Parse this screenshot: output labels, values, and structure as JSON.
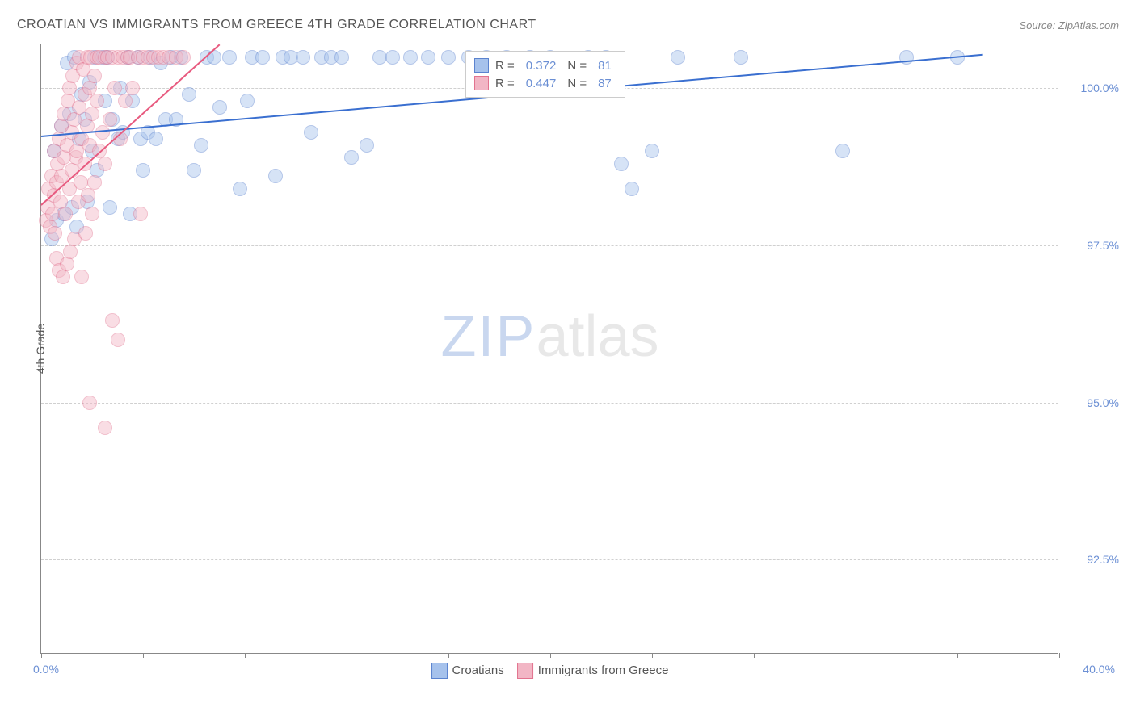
{
  "title": "CROATIAN VS IMMIGRANTS FROM GREECE 4TH GRADE CORRELATION CHART",
  "source": "Source: ZipAtlas.com",
  "watermark_a": "ZIP",
  "watermark_b": "atlas",
  "chart": {
    "type": "scatter",
    "xlim": [
      0,
      40
    ],
    "ylim": [
      91,
      100.7
    ],
    "x_tick_positions": [
      0,
      4,
      8,
      12,
      16,
      20,
      24,
      28,
      32,
      36,
      40
    ],
    "x_label_min": "0.0%",
    "x_label_max": "40.0%",
    "y_gridlines": [
      92.5,
      95.0,
      97.5,
      100.0
    ],
    "y_tick_labels": [
      "92.5%",
      "95.0%",
      "97.5%",
      "100.0%"
    ],
    "y_axis_title": "4th Grade",
    "background_color": "#ffffff",
    "grid_color": "#d0d0d0",
    "axis_color": "#888888",
    "point_radius": 9,
    "point_opacity": 0.45,
    "series": [
      {
        "name": "Croatians",
        "fill": "#a6c2ec",
        "stroke": "#5b83cf",
        "line_color": "#3a6fd0",
        "R": "0.372",
        "N": "81",
        "trend": {
          "x1": 0,
          "y1": 99.25,
          "x2": 37,
          "y2": 100.55
        },
        "points": [
          [
            0.4,
            97.6
          ],
          [
            0.5,
            99.0
          ],
          [
            0.6,
            97.9
          ],
          [
            0.8,
            99.4
          ],
          [
            0.9,
            98.0
          ],
          [
            1.0,
            100.4
          ],
          [
            1.1,
            99.6
          ],
          [
            1.2,
            98.1
          ],
          [
            1.3,
            100.5
          ],
          [
            1.4,
            97.8
          ],
          [
            1.5,
            99.2
          ],
          [
            1.6,
            99.9
          ],
          [
            1.7,
            99.5
          ],
          [
            1.8,
            98.2
          ],
          [
            1.9,
            100.1
          ],
          [
            2.0,
            99.0
          ],
          [
            2.1,
            100.5
          ],
          [
            2.2,
            98.7
          ],
          [
            2.4,
            100.5
          ],
          [
            2.5,
            99.8
          ],
          [
            2.6,
            100.5
          ],
          [
            2.7,
            98.1
          ],
          [
            2.8,
            99.5
          ],
          [
            3.0,
            99.2
          ],
          [
            3.1,
            100.0
          ],
          [
            3.2,
            99.3
          ],
          [
            3.4,
            100.5
          ],
          [
            3.5,
            98.0
          ],
          [
            3.6,
            99.8
          ],
          [
            3.8,
            100.5
          ],
          [
            3.9,
            99.2
          ],
          [
            4.0,
            98.7
          ],
          [
            4.2,
            99.3
          ],
          [
            4.3,
            100.5
          ],
          [
            4.5,
            99.2
          ],
          [
            4.7,
            100.4
          ],
          [
            4.9,
            99.5
          ],
          [
            5.1,
            100.5
          ],
          [
            5.3,
            99.5
          ],
          [
            5.5,
            100.5
          ],
          [
            5.8,
            99.9
          ],
          [
            6.0,
            98.7
          ],
          [
            6.3,
            99.1
          ],
          [
            6.5,
            100.5
          ],
          [
            6.8,
            100.5
          ],
          [
            7.0,
            99.7
          ],
          [
            7.4,
            100.5
          ],
          [
            7.8,
            98.4
          ],
          [
            8.1,
            99.8
          ],
          [
            8.3,
            100.5
          ],
          [
            8.7,
            100.5
          ],
          [
            9.2,
            98.6
          ],
          [
            9.5,
            100.5
          ],
          [
            9.8,
            100.5
          ],
          [
            10.3,
            100.5
          ],
          [
            10.6,
            99.3
          ],
          [
            11.0,
            100.5
          ],
          [
            11.4,
            100.5
          ],
          [
            11.8,
            100.5
          ],
          [
            12.2,
            98.9
          ],
          [
            12.8,
            99.1
          ],
          [
            13.3,
            100.5
          ],
          [
            13.8,
            100.5
          ],
          [
            14.5,
            100.5
          ],
          [
            15.2,
            100.5
          ],
          [
            16.0,
            100.5
          ],
          [
            16.8,
            100.5
          ],
          [
            17.5,
            100.5
          ],
          [
            18.3,
            100.5
          ],
          [
            19.2,
            100.5
          ],
          [
            20.0,
            100.5
          ],
          [
            21.5,
            100.5
          ],
          [
            22.2,
            100.5
          ],
          [
            22.8,
            98.8
          ],
          [
            23.2,
            98.4
          ],
          [
            24.0,
            99.0
          ],
          [
            25.0,
            100.5
          ],
          [
            27.5,
            100.5
          ],
          [
            31.5,
            99.0
          ],
          [
            34.0,
            100.5
          ],
          [
            36.0,
            100.5
          ]
        ]
      },
      {
        "name": "Immigrants from Greece",
        "fill": "#f2b6c5",
        "stroke": "#e2738f",
        "line_color": "#e85a7f",
        "R": "0.447",
        "N": "87",
        "trend": {
          "x1": 0,
          "y1": 98.15,
          "x2": 7.0,
          "y2": 100.7
        },
        "points": [
          [
            0.2,
            97.9
          ],
          [
            0.25,
            98.1
          ],
          [
            0.3,
            98.4
          ],
          [
            0.35,
            97.8
          ],
          [
            0.4,
            98.6
          ],
          [
            0.45,
            98.0
          ],
          [
            0.5,
            98.3
          ],
          [
            0.5,
            99.0
          ],
          [
            0.55,
            97.7
          ],
          [
            0.6,
            97.3
          ],
          [
            0.6,
            98.5
          ],
          [
            0.65,
            98.8
          ],
          [
            0.7,
            97.1
          ],
          [
            0.7,
            99.2
          ],
          [
            0.75,
            98.2
          ],
          [
            0.8,
            98.6
          ],
          [
            0.8,
            99.4
          ],
          [
            0.85,
            97.0
          ],
          [
            0.9,
            98.9
          ],
          [
            0.9,
            99.6
          ],
          [
            0.95,
            98.0
          ],
          [
            1.0,
            99.1
          ],
          [
            1.0,
            97.2
          ],
          [
            1.05,
            99.8
          ],
          [
            1.1,
            98.4
          ],
          [
            1.1,
            100.0
          ],
          [
            1.15,
            97.4
          ],
          [
            1.2,
            99.3
          ],
          [
            1.2,
            98.7
          ],
          [
            1.25,
            100.2
          ],
          [
            1.3,
            99.5
          ],
          [
            1.3,
            97.6
          ],
          [
            1.35,
            98.9
          ],
          [
            1.4,
            100.4
          ],
          [
            1.4,
            99.0
          ],
          [
            1.45,
            98.2
          ],
          [
            1.5,
            99.7
          ],
          [
            1.5,
            100.5
          ],
          [
            1.55,
            98.5
          ],
          [
            1.6,
            99.2
          ],
          [
            1.6,
            97.0
          ],
          [
            1.65,
            100.3
          ],
          [
            1.7,
            98.8
          ],
          [
            1.7,
            99.9
          ],
          [
            1.75,
            97.7
          ],
          [
            1.8,
            100.5
          ],
          [
            1.8,
            99.4
          ],
          [
            1.85,
            98.3
          ],
          [
            1.9,
            100.0
          ],
          [
            1.9,
            99.1
          ],
          [
            1.95,
            100.5
          ],
          [
            2.0,
            98.0
          ],
          [
            2.0,
            99.6
          ],
          [
            2.1,
            100.2
          ],
          [
            2.1,
            98.5
          ],
          [
            2.2,
            99.8
          ],
          [
            2.2,
            100.5
          ],
          [
            2.3,
            99.0
          ],
          [
            2.3,
            100.5
          ],
          [
            2.4,
            99.3
          ],
          [
            2.5,
            100.5
          ],
          [
            2.5,
            98.8
          ],
          [
            2.6,
            100.5
          ],
          [
            2.7,
            99.5
          ],
          [
            2.8,
            100.5
          ],
          [
            2.8,
            96.3
          ],
          [
            2.9,
            100.0
          ],
          [
            3.0,
            100.5
          ],
          [
            3.0,
            96.0
          ],
          [
            3.1,
            99.2
          ],
          [
            3.2,
            100.5
          ],
          [
            3.3,
            99.8
          ],
          [
            3.4,
            100.5
          ],
          [
            3.5,
            100.5
          ],
          [
            3.6,
            100.0
          ],
          [
            3.8,
            100.5
          ],
          [
            3.9,
            98.0
          ],
          [
            4.0,
            100.5
          ],
          [
            4.2,
            100.5
          ],
          [
            4.4,
            100.5
          ],
          [
            4.6,
            100.5
          ],
          [
            4.8,
            100.5
          ],
          [
            5.0,
            100.5
          ],
          [
            5.3,
            100.5
          ],
          [
            5.6,
            100.5
          ],
          [
            1.9,
            95.0
          ],
          [
            2.5,
            94.6
          ]
        ]
      }
    ]
  },
  "bottom_legend": {
    "s1_label": "Croatians",
    "s2_label": "Immigrants from Greece"
  }
}
